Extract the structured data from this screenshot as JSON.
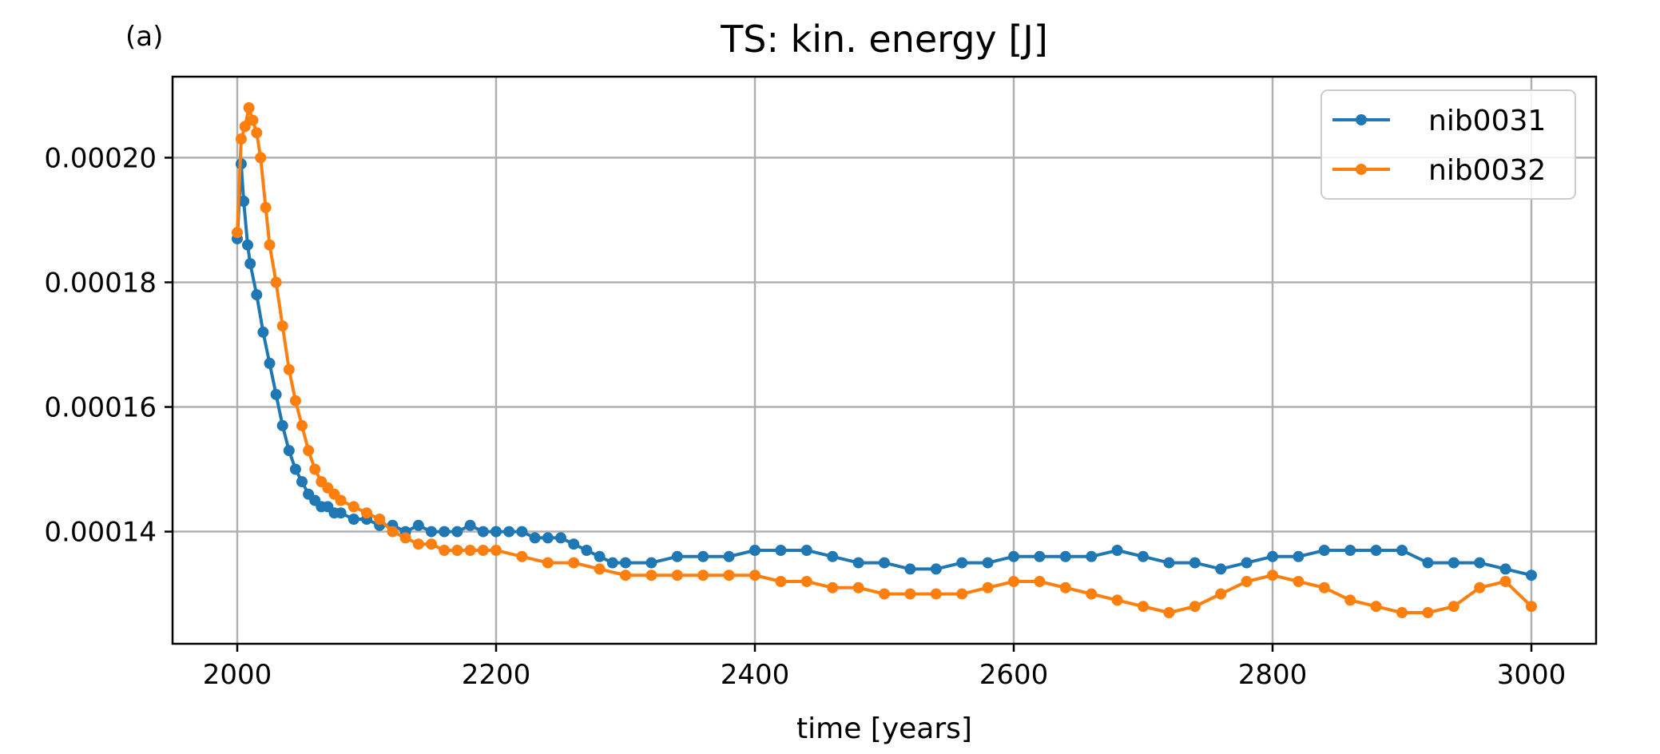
{
  "panel_label": "(a)",
  "colors": {
    "nib0031": "#1f77b4",
    "nib0032": "#ff7f0e",
    "grid": "#b0b0b0"
  },
  "chart_data": {
    "type": "line",
    "title": "TS: kin. energy [J]",
    "xlabel": "time [years]",
    "ylabel": "",
    "xlim": [
      1950,
      3050
    ],
    "ylim": [
      0.000122,
      0.000213
    ],
    "xticks": [
      2000,
      2200,
      2400,
      2600,
      2800,
      3000
    ],
    "xtick_labels": [
      "2000",
      "2200",
      "2400",
      "2600",
      "2800",
      "3000"
    ],
    "yticks": [
      0.00014,
      0.00016,
      0.00018,
      0.0002
    ],
    "ytick_labels": [
      "0.00014",
      "0.00016",
      "0.00018",
      "0.00020"
    ],
    "grid": true,
    "legend": "top-right",
    "series": [
      {
        "name": "nib0031",
        "x": [
          2000,
          2003,
          2005,
          2008,
          2010,
          2015,
          2020,
          2025,
          2030,
          2035,
          2040,
          2045,
          2050,
          2055,
          2060,
          2065,
          2070,
          2075,
          2080,
          2090,
          2100,
          2110,
          2120,
          2130,
          2140,
          2150,
          2160,
          2170,
          2180,
          2190,
          2200,
          2210,
          2220,
          2230,
          2240,
          2250,
          2260,
          2270,
          2280,
          2290,
          2300,
          2320,
          2340,
          2360,
          2380,
          2400,
          2420,
          2440,
          2460,
          2480,
          2500,
          2520,
          2540,
          2560,
          2580,
          2600,
          2620,
          2640,
          2660,
          2680,
          2700,
          2720,
          2740,
          2760,
          2780,
          2800,
          2820,
          2840,
          2860,
          2880,
          2900,
          2920,
          2940,
          2960,
          2980,
          3000
        ],
        "values": [
          0.000187,
          0.000199,
          0.000193,
          0.000186,
          0.000183,
          0.000178,
          0.000172,
          0.000167,
          0.000162,
          0.000157,
          0.000153,
          0.00015,
          0.000148,
          0.000146,
          0.000145,
          0.000144,
          0.000144,
          0.000143,
          0.000143,
          0.000142,
          0.000142,
          0.000141,
          0.000141,
          0.00014,
          0.000141,
          0.00014,
          0.00014,
          0.00014,
          0.000141,
          0.00014,
          0.00014,
          0.00014,
          0.00014,
          0.000139,
          0.000139,
          0.000139,
          0.000138,
          0.000137,
          0.000136,
          0.000135,
          0.000135,
          0.000135,
          0.000136,
          0.000136,
          0.000136,
          0.000137,
          0.000137,
          0.000137,
          0.000136,
          0.000135,
          0.000135,
          0.000134,
          0.000134,
          0.000135,
          0.000135,
          0.000136,
          0.000136,
          0.000136,
          0.000136,
          0.000137,
          0.000136,
          0.000135,
          0.000135,
          0.000134,
          0.000135,
          0.000136,
          0.000136,
          0.000137,
          0.000137,
          0.000137,
          0.000137,
          0.000135,
          0.000135,
          0.000135,
          0.000134,
          0.000133
        ]
      },
      {
        "name": "nib0032",
        "x": [
          2000,
          2003,
          2006,
          2009,
          2012,
          2015,
          2018,
          2022,
          2025,
          2030,
          2035,
          2040,
          2045,
          2050,
          2055,
          2060,
          2065,
          2070,
          2075,
          2080,
          2090,
          2100,
          2110,
          2120,
          2130,
          2140,
          2150,
          2160,
          2170,
          2180,
          2190,
          2200,
          2220,
          2240,
          2260,
          2280,
          2300,
          2320,
          2340,
          2360,
          2380,
          2400,
          2420,
          2440,
          2460,
          2480,
          2500,
          2520,
          2540,
          2560,
          2580,
          2600,
          2620,
          2640,
          2660,
          2680,
          2700,
          2720,
          2740,
          2760,
          2780,
          2800,
          2820,
          2840,
          2860,
          2880,
          2900,
          2920,
          2940,
          2960,
          2980,
          3000
        ],
        "values": [
          0.000188,
          0.000203,
          0.000205,
          0.000208,
          0.000206,
          0.000204,
          0.0002,
          0.000192,
          0.000186,
          0.00018,
          0.000173,
          0.000166,
          0.000161,
          0.000157,
          0.000153,
          0.00015,
          0.000148,
          0.000147,
          0.000146,
          0.000145,
          0.000144,
          0.000143,
          0.000142,
          0.00014,
          0.000139,
          0.000138,
          0.000138,
          0.000137,
          0.000137,
          0.000137,
          0.000137,
          0.000137,
          0.000136,
          0.000135,
          0.000135,
          0.000134,
          0.000133,
          0.000133,
          0.000133,
          0.000133,
          0.000133,
          0.000133,
          0.000132,
          0.000132,
          0.000131,
          0.000131,
          0.00013,
          0.00013,
          0.00013,
          0.00013,
          0.000131,
          0.000132,
          0.000132,
          0.000131,
          0.00013,
          0.000129,
          0.000128,
          0.000127,
          0.000128,
          0.00013,
          0.000132,
          0.000133,
          0.000132,
          0.000131,
          0.000129,
          0.000128,
          0.000127,
          0.000127,
          0.000128,
          0.000131,
          0.000132,
          0.000128
        ]
      }
    ]
  }
}
